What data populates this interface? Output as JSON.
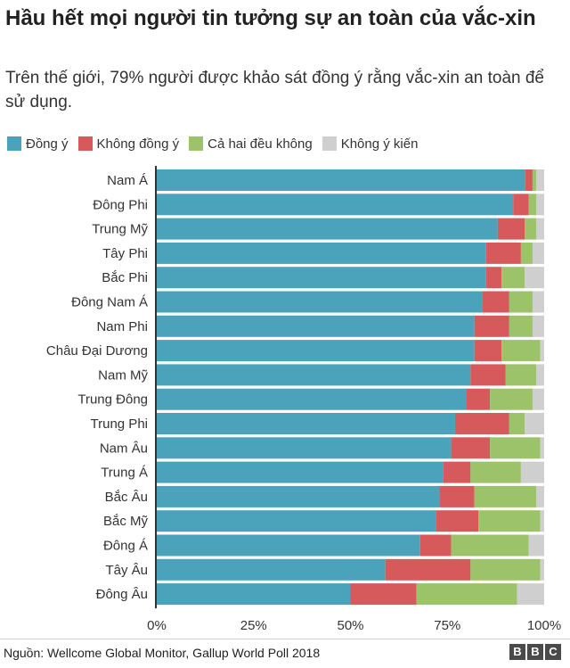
{
  "title": "Hầu hết mọi người tin tưởng sự an toàn của vắc-xin",
  "subtitle": "Trên thế giới, 79% người được khảo sát đồng ý rằng vắc-xin an toàn để sử dụng.",
  "source": "Nguồn: Wellcome Global Monitor, Gallup World Poll 2018",
  "logo": {
    "b1": "B",
    "b2": "B",
    "c": "C"
  },
  "colors": {
    "agree": "#4aa3ba",
    "disagree": "#d65a5c",
    "neither": "#9cc26a",
    "no_opinion": "#cfcfcf"
  },
  "chart_data": {
    "type": "bar",
    "orientation": "horizontal",
    "stacked": true,
    "xlim": [
      0,
      100
    ],
    "ticks": [
      "0%",
      "25%",
      "50%",
      "75%",
      "100%"
    ],
    "grid": false,
    "legend_position": "top",
    "categories": [
      "Nam Á",
      "Đông Phi",
      "Trung Mỹ",
      "Tây Phi",
      "Bắc Phi",
      "Đông Nam Á",
      "Nam Phi",
      "Châu Đại Dương",
      "Nam Mỹ",
      "Trung Đông",
      "Trung Phi",
      "Nam Âu",
      "Trung Á",
      "Bắc Âu",
      "Bắc Mỹ",
      "Đông Á",
      "Tây Âu",
      "Đông Âu"
    ],
    "series": [
      {
        "name": "Đồng ý",
        "color": "#4aa3ba",
        "values": [
          95,
          92,
          88,
          85,
          85,
          84,
          82,
          82,
          81,
          80,
          77,
          76,
          74,
          73,
          72,
          68,
          59,
          50
        ]
      },
      {
        "name": "Không đồng ý",
        "color": "#d65a5c",
        "values": [
          2,
          4,
          7,
          9,
          4,
          7,
          9,
          7,
          9,
          6,
          14,
          10,
          7,
          9,
          11,
          8,
          22,
          17
        ]
      },
      {
        "name": "Cả hai đều không",
        "color": "#9cc26a",
        "values": [
          1,
          2,
          3,
          3,
          6,
          6,
          6,
          10,
          8,
          11,
          4,
          13,
          13,
          16,
          16,
          20,
          18,
          26
        ]
      },
      {
        "name": "Không ý kiến",
        "color": "#cfcfcf",
        "values": [
          2,
          2,
          2,
          3,
          5,
          3,
          3,
          1,
          2,
          3,
          5,
          1,
          6,
          2,
          1,
          4,
          1,
          7
        ]
      }
    ]
  }
}
